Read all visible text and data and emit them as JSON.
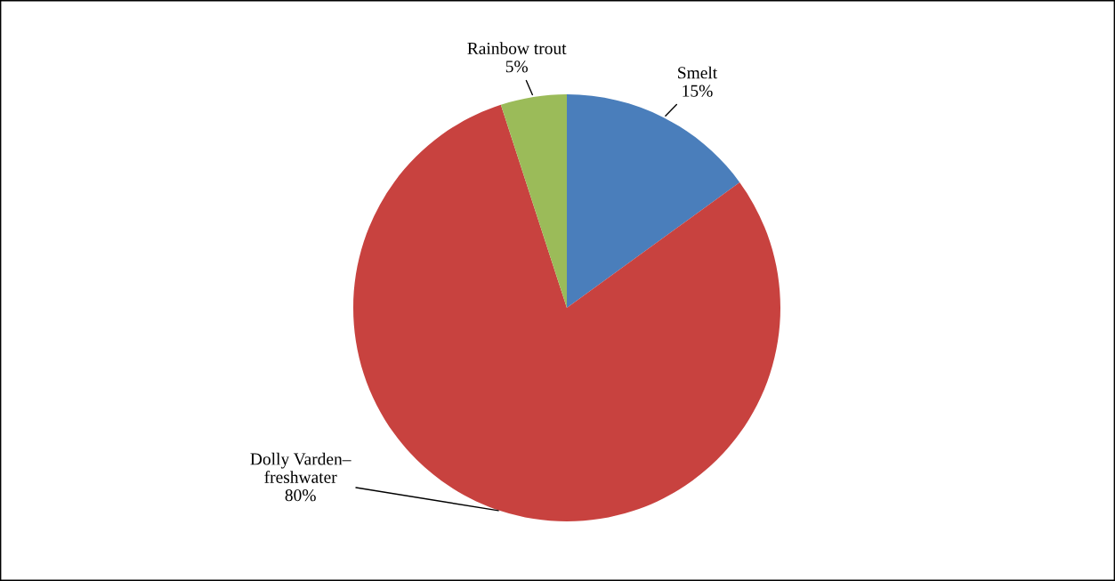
{
  "chart_data": {
    "type": "pie",
    "categories": [
      "Smelt",
      "Dolly Varden–\nfreshwater",
      "Rainbow trout"
    ],
    "values": [
      15,
      80,
      5
    ],
    "colors": [
      "#4a7ebb",
      "#c8423f",
      "#9bbb59"
    ],
    "value_labels": [
      "15%",
      "80%",
      "5%"
    ],
    "legend": false
  }
}
